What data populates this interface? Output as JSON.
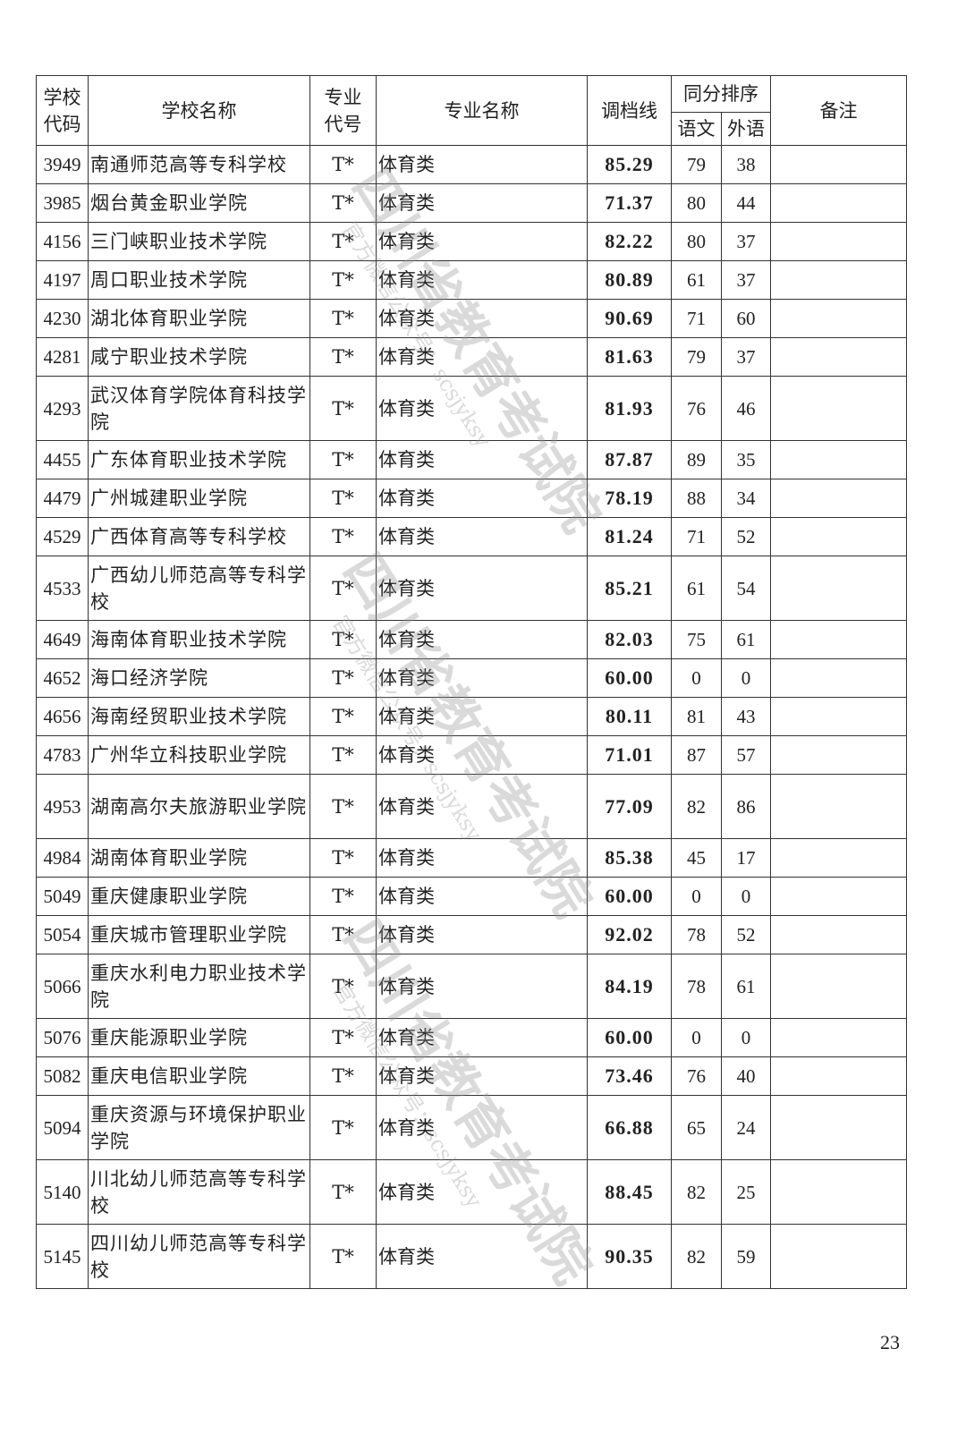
{
  "header": {
    "school_code": "学校代码",
    "school_name": "学校名称",
    "major_code": "专业代号",
    "major_name": "专业名称",
    "cutoff": "调档线",
    "tie_rank": "同分排序",
    "chinese": "语文",
    "foreign": "外语",
    "remark": "备注"
  },
  "rows": [
    {
      "code": "3949",
      "name": "南通师范高等专科学校",
      "major_code": "T*",
      "major": "体育类",
      "cutoff": "85.29",
      "chinese": "79",
      "foreign": "38",
      "remark": ""
    },
    {
      "code": "3985",
      "name": "烟台黄金职业学院",
      "major_code": "T*",
      "major": "体育类",
      "cutoff": "71.37",
      "chinese": "80",
      "foreign": "44",
      "remark": ""
    },
    {
      "code": "4156",
      "name": "三门峡职业技术学院",
      "major_code": "T*",
      "major": "体育类",
      "cutoff": "82.22",
      "chinese": "80",
      "foreign": "37",
      "remark": ""
    },
    {
      "code": "4197",
      "name": "周口职业技术学院",
      "major_code": "T*",
      "major": "体育类",
      "cutoff": "80.89",
      "chinese": "61",
      "foreign": "37",
      "remark": ""
    },
    {
      "code": "4230",
      "name": "湖北体育职业学院",
      "major_code": "T*",
      "major": "体育类",
      "cutoff": "90.69",
      "chinese": "71",
      "foreign": "60",
      "remark": ""
    },
    {
      "code": "4281",
      "name": "咸宁职业技术学院",
      "major_code": "T*",
      "major": "体育类",
      "cutoff": "81.63",
      "chinese": "79",
      "foreign": "37",
      "remark": ""
    },
    {
      "code": "4293",
      "name": "武汉体育学院体育科技学院",
      "major_code": "T*",
      "major": "体育类",
      "cutoff": "81.93",
      "chinese": "76",
      "foreign": "46",
      "remark": ""
    },
    {
      "code": "4455",
      "name": "广东体育职业技术学院",
      "major_code": "T*",
      "major": "体育类",
      "cutoff": "87.87",
      "chinese": "89",
      "foreign": "35",
      "remark": ""
    },
    {
      "code": "4479",
      "name": "广州城建职业学院",
      "major_code": "T*",
      "major": "体育类",
      "cutoff": "78.19",
      "chinese": "88",
      "foreign": "34",
      "remark": ""
    },
    {
      "code": "4529",
      "name": "广西体育高等专科学校",
      "major_code": "T*",
      "major": "体育类",
      "cutoff": "81.24",
      "chinese": "71",
      "foreign": "52",
      "remark": ""
    },
    {
      "code": "4533",
      "name": "广西幼儿师范高等专科学校",
      "major_code": "T*",
      "major": "体育类",
      "cutoff": "85.21",
      "chinese": "61",
      "foreign": "54",
      "remark": ""
    },
    {
      "code": "4649",
      "name": "海南体育职业技术学院",
      "major_code": "T*",
      "major": "体育类",
      "cutoff": "82.03",
      "chinese": "75",
      "foreign": "61",
      "remark": ""
    },
    {
      "code": "4652",
      "name": "海口经济学院",
      "major_code": "T*",
      "major": "体育类",
      "cutoff": "60.00",
      "chinese": "0",
      "foreign": "0",
      "remark": ""
    },
    {
      "code": "4656",
      "name": "海南经贸职业技术学院",
      "major_code": "T*",
      "major": "体育类",
      "cutoff": "80.11",
      "chinese": "81",
      "foreign": "43",
      "remark": ""
    },
    {
      "code": "4783",
      "name": "广州华立科技职业学院",
      "major_code": "T*",
      "major": "体育类",
      "cutoff": "71.01",
      "chinese": "87",
      "foreign": "57",
      "remark": ""
    },
    {
      "code": "4953",
      "name": "湖南高尔夫旅游职业学院",
      "major_code": "T*",
      "major": "体育类",
      "cutoff": "77.09",
      "chinese": "82",
      "foreign": "86",
      "remark": ""
    },
    {
      "code": "4984",
      "name": "湖南体育职业学院",
      "major_code": "T*",
      "major": "体育类",
      "cutoff": "85.38",
      "chinese": "45",
      "foreign": "17",
      "remark": ""
    },
    {
      "code": "5049",
      "name": "重庆健康职业学院",
      "major_code": "T*",
      "major": "体育类",
      "cutoff": "60.00",
      "chinese": "0",
      "foreign": "0",
      "remark": ""
    },
    {
      "code": "5054",
      "name": "重庆城市管理职业学院",
      "major_code": "T*",
      "major": "体育类",
      "cutoff": "92.02",
      "chinese": "78",
      "foreign": "52",
      "remark": ""
    },
    {
      "code": "5066",
      "name": "重庆水利电力职业技术学院",
      "major_code": "T*",
      "major": "体育类",
      "cutoff": "84.19",
      "chinese": "78",
      "foreign": "61",
      "remark": ""
    },
    {
      "code": "5076",
      "name": "重庆能源职业学院",
      "major_code": "T*",
      "major": "体育类",
      "cutoff": "60.00",
      "chinese": "0",
      "foreign": "0",
      "remark": ""
    },
    {
      "code": "5082",
      "name": "重庆电信职业学院",
      "major_code": "T*",
      "major": "体育类",
      "cutoff": "73.46",
      "chinese": "76",
      "foreign": "40",
      "remark": ""
    },
    {
      "code": "5094",
      "name": "重庆资源与环境保护职业学院",
      "major_code": "T*",
      "major": "体育类",
      "cutoff": "66.88",
      "chinese": "65",
      "foreign": "24",
      "remark": ""
    },
    {
      "code": "5140",
      "name": "川北幼儿师范高等专科学校",
      "major_code": "T*",
      "major": "体育类",
      "cutoff": "88.45",
      "chinese": "82",
      "foreign": "25",
      "remark": ""
    },
    {
      "code": "5145",
      "name": "四川幼儿师范高等专科学校",
      "major_code": "T*",
      "major": "体育类",
      "cutoff": "90.35",
      "chinese": "82",
      "foreign": "59",
      "remark": ""
    }
  ],
  "watermark": {
    "org": "四川省教育考试院",
    "account": "官方微信公众号：scsjyksy"
  },
  "page_number": "23"
}
